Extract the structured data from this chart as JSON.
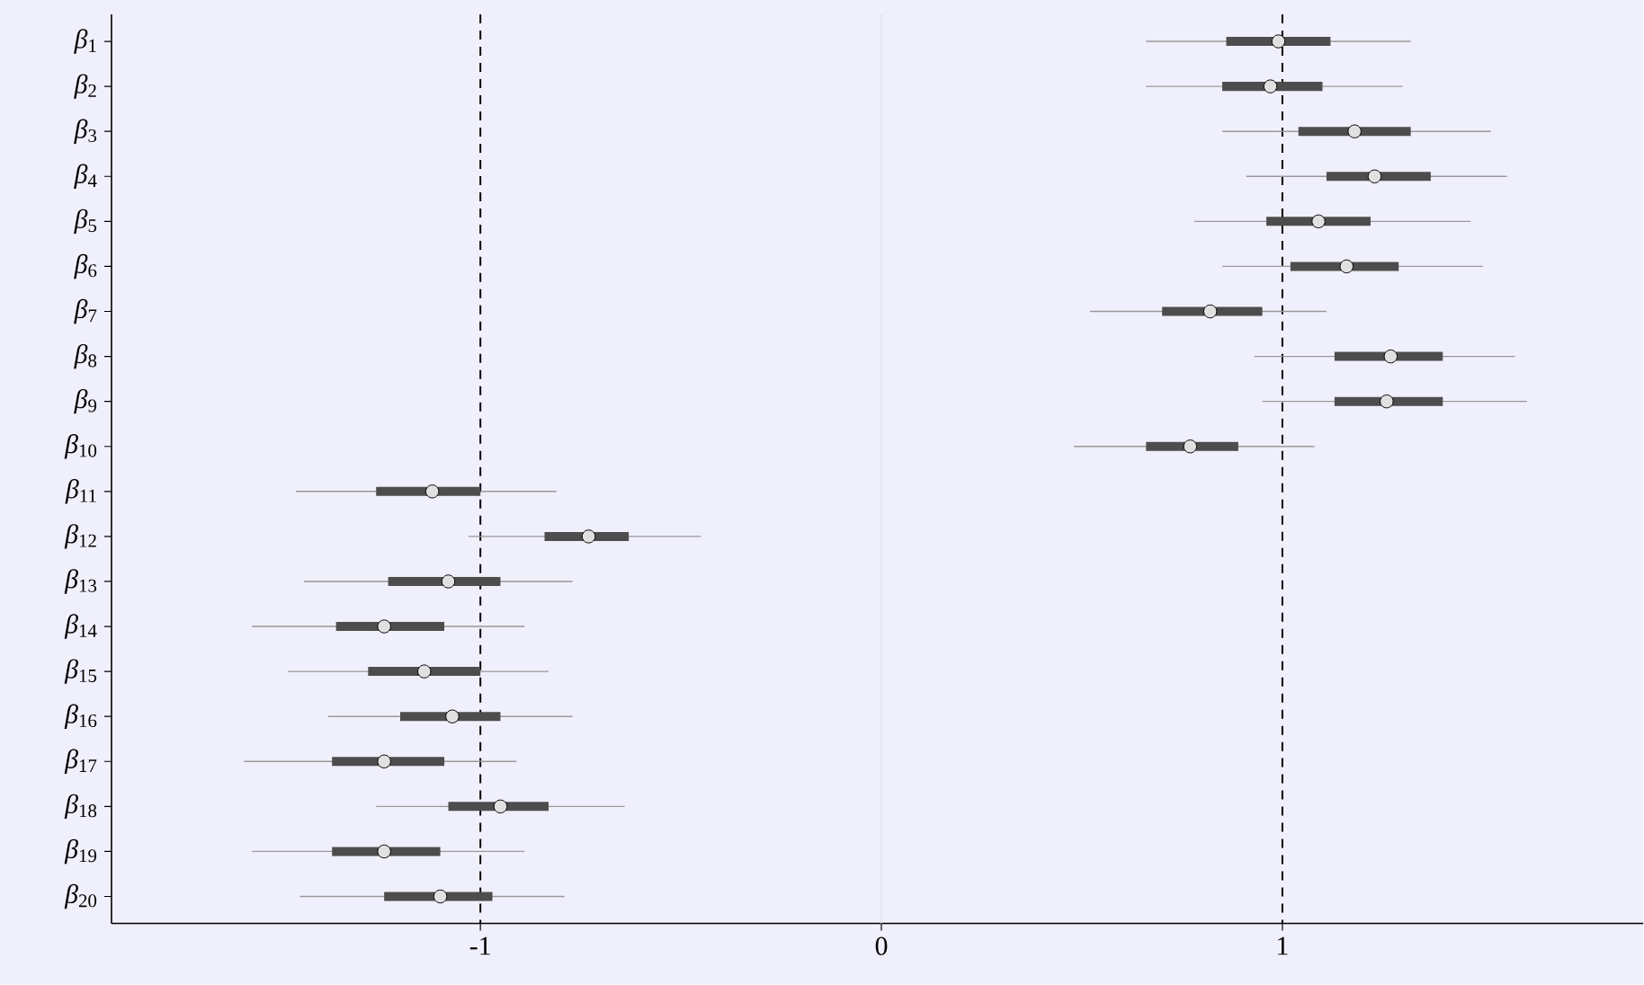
{
  "chart_data": {
    "type": "scatter",
    "orientation": "horizontal",
    "categories": [
      "*β*$_{1}$",
      "*β*$_{2}$",
      "*β*$_{3}$",
      "*β*$_{4}$",
      "*β*$_{5}$",
      "*β*$_{6}$",
      "*β*$_{7}$",
      "*β*$_{8}$",
      "*β*$_{9}$",
      "*β*$_{10}$",
      "*β*$_{11}$",
      "*β*$_{12}$",
      "*β*$_{13}$",
      "*β*$_{14}$",
      "*β*$_{15}$",
      "*β*$_{16}$",
      "*β*$_{17}$",
      "*β*$_{18}$",
      "*β*$_{19}$",
      "*β*$_{20}$"
    ],
    "series": [
      {
        "type": "bar",
        "color": "#4d4d4d",
        "base": [
          0.86,
          0.85,
          1.04,
          1.11,
          0.96,
          1.02,
          0.7,
          1.13,
          1.13,
          0.66,
          -1.26,
          -0.84,
          -1.23,
          -1.36,
          -1.28,
          -1.2,
          -1.37,
          -1.08,
          -1.37,
          -1.24
        ],
        "values": [
          0.26,
          0.25,
          0.28,
          0.26,
          0.26,
          0.27,
          0.25,
          0.27,
          0.27,
          0.23,
          0.26,
          0.21,
          0.28,
          0.27,
          0.28,
          0.25,
          0.28,
          0.25,
          0.27,
          0.27
        ]
      },
      {
        "color": "#e0e0e0",
        "values": [
          0.99,
          0.97,
          1.18,
          1.23,
          1.09,
          1.16,
          0.82,
          1.27,
          1.26,
          0.77,
          -1.12,
          -0.73,
          -1.08,
          -1.24,
          -1.14,
          -1.07,
          -1.24,
          -0.95,
          -1.24,
          -1.1
        ],
        "errors": [
          [
            0.66,
            1.32
          ],
          [
            0.66,
            1.3
          ],
          [
            0.85,
            1.52
          ],
          [
            0.91,
            1.56
          ],
          [
            0.78,
            1.47
          ],
          [
            0.85,
            1.5
          ],
          [
            0.52,
            1.11
          ],
          [
            0.93,
            1.58
          ],
          [
            0.95,
            1.61
          ],
          [
            0.48,
            1.08
          ],
          [
            -1.46,
            -0.81
          ],
          [
            -1.03,
            -0.45
          ],
          [
            -1.44,
            -0.77
          ],
          [
            -1.57,
            -0.89
          ],
          [
            -1.48,
            -0.83
          ],
          [
            -1.38,
            -0.77
          ],
          [
            -1.59,
            -0.91
          ],
          [
            -1.26,
            -0.64
          ],
          [
            -1.57,
            -0.89
          ],
          [
            -1.45,
            -0.79
          ]
        ]
      }
    ],
    "marker": "circle",
    "xlim": [
      -1.92,
      1.9
    ],
    "xticks": [
      -1,
      0,
      1
    ],
    "ref_lines": [
      {
        "axis": "x",
        "value": 0,
        "color": "#e1e1e8",
        "line_style": "solid"
      },
      {
        "axis": "x",
        "value": -1,
        "color": "#000000",
        "line_style": "dashed"
      },
      {
        "axis": "x",
        "value": 1,
        "color": "#000000",
        "line_style": "dashed"
      }
    ]
  }
}
